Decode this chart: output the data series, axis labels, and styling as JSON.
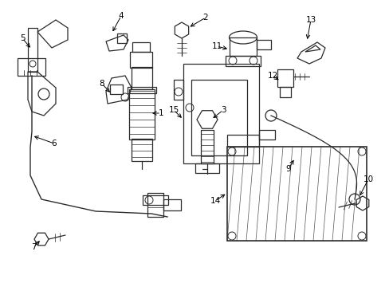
{
  "background_color": "#ffffff",
  "line_color": "#2a2a2a",
  "label_color": "#000000",
  "fig_width": 4.89,
  "fig_height": 3.6,
  "dpi": 100,
  "xlim": [
    0,
    489
  ],
  "ylim": [
    0,
    360
  ]
}
